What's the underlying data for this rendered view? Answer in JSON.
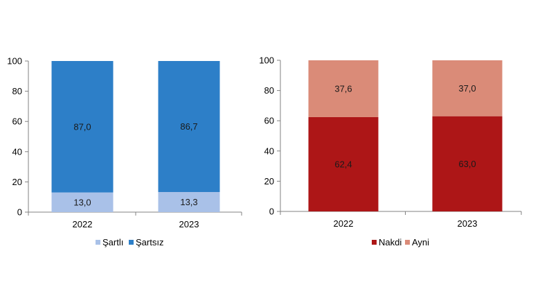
{
  "chart_data": [
    {
      "type": "bar",
      "stacked": true,
      "categories": [
        "2022",
        "2023"
      ],
      "series": [
        {
          "name": "Şartlı",
          "values": [
            13.0,
            13.3
          ],
          "labels": [
            "13,0",
            "13,3"
          ],
          "color": "#a9c1e8"
        },
        {
          "name": "Şartsız",
          "values": [
            87.0,
            86.7
          ],
          "labels": [
            "87,0",
            "86,7"
          ],
          "color": "#2d7fc8"
        }
      ],
      "yticks": [
        "0",
        "20",
        "40",
        "60",
        "80",
        "100"
      ],
      "ylim": [
        0,
        100
      ],
      "title": "",
      "xlabel": "",
      "ylabel": "",
      "grid": false,
      "legend": "bottom"
    },
    {
      "type": "bar",
      "stacked": true,
      "categories": [
        "2022",
        "2023"
      ],
      "series": [
        {
          "name": "Nakdi",
          "values": [
            62.4,
            63.0
          ],
          "labels": [
            "62,4",
            "63,0"
          ],
          "color": "#ad1617"
        },
        {
          "name": "Ayni",
          "values": [
            37.6,
            37.0
          ],
          "labels": [
            "37,6",
            "37,0"
          ],
          "color": "#da8b78"
        }
      ],
      "yticks": [
        "0",
        "20",
        "40",
        "60",
        "80",
        "100"
      ],
      "ylim": [
        0,
        100
      ],
      "title": "",
      "xlabel": "",
      "ylabel": "",
      "grid": false,
      "legend": "bottom"
    }
  ]
}
